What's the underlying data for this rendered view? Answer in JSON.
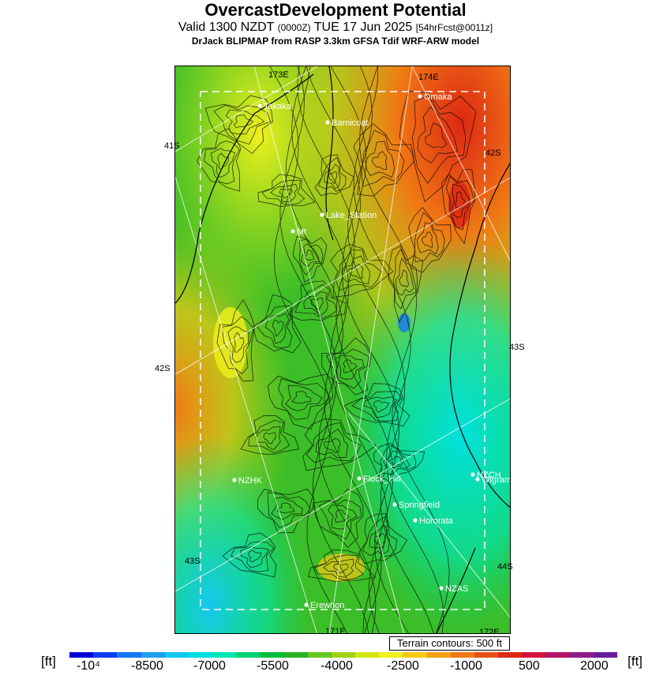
{
  "header": {
    "title": "OvercastDevelopment Potential",
    "valid_prefix": "Valid 1300 NZDT",
    "valid_utc": "(0000Z)",
    "valid_date": "TUE 17 Jun 2025",
    "forecast_tag": "[54hrFcst@0011z]",
    "model_line": "DrJack BLIPMAP from RASP 3.3km GFSA Tdif WRF-ARW model"
  },
  "map": {
    "lat_labels": {
      "left_top": "41S",
      "left_mid": "42S",
      "left_bot": "43S",
      "right_top": "42S",
      "right_mid": "43S",
      "right_bot": "44S"
    },
    "lon_labels": {
      "top_left": "173E",
      "top_right": "174E",
      "bottom_left": "171E",
      "bottom_right": "172E"
    },
    "towns": [
      {
        "name": "Takaka"
      },
      {
        "name": "Omaka"
      },
      {
        "name": "Barnicoat"
      },
      {
        "name": "Lake_Station"
      },
      {
        "name": "Mt"
      },
      {
        "name": "NZHK"
      },
      {
        "name": "Flock_Hill"
      },
      {
        "name": "NZCH"
      },
      {
        "name": "Wigram"
      },
      {
        "name": "Springfield"
      },
      {
        "name": "Hororata"
      },
      {
        "name": "NZAS"
      },
      {
        "name": "Erewhon"
      }
    ]
  },
  "terrain_note": "Terrain contours: 500 ft",
  "legend": {
    "unit_left": "[ft]",
    "unit_right": "[ft]",
    "ticks": [
      "-10⁴",
      "-8500",
      "-7000",
      "-5500",
      "-4000",
      "-2500",
      "-1000",
      "500",
      "2000"
    ],
    "colors": [
      "#0000d8",
      "#0a3cf0",
      "#1478f0",
      "#1ea0f0",
      "#14c8f0",
      "#00e0e0",
      "#00e6b4",
      "#00d278",
      "#00be3c",
      "#28b428",
      "#64c81e",
      "#a0d214",
      "#d2e614",
      "#f0f01e",
      "#f5c814",
      "#f5a014",
      "#f07814",
      "#e65014",
      "#dc2814",
      "#d2143c",
      "#b41464",
      "#8c1e8c",
      "#641ea0"
    ]
  }
}
